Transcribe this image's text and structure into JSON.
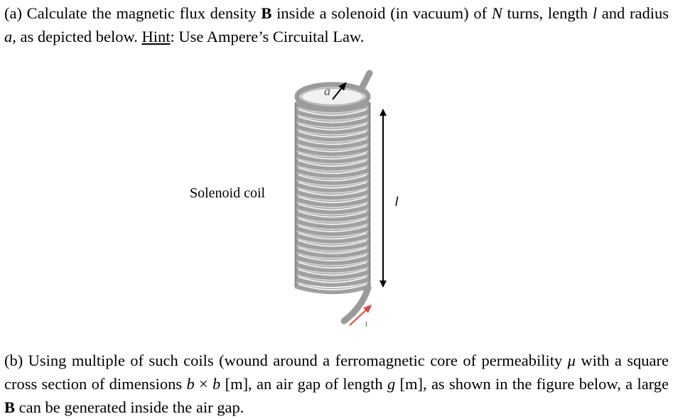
{
  "part_a": {
    "prefix": "(a) Calculate the magnetic flux density ",
    "B": "B",
    "mid1": " inside a solenoid (in vacuum) of ",
    "N": "N",
    "mid2": " turns, length ",
    "l": "l",
    "mid3": " and radius ",
    "a": "a",
    "mid4": ", as depicted below. ",
    "hint": "Hint",
    "suffix": ": Use Ampere’s Circuital Law."
  },
  "figure": {
    "coil_label": "Solenoid coil",
    "radius_label": "a",
    "length_label": "l",
    "current_label": "I",
    "coil_color": "#a9a9a9",
    "current_arrow_color": "#e0443a"
  },
  "part_b": {
    "prefix": "(b) Using multiple of such coils (wound around a ferromagnetic core of permeability ",
    "mu": "μ",
    "mid1": " with a square cross section of dimensions ",
    "b1": "b",
    "times": " × ",
    "b2": "b",
    "mid2": " [m], an air gap of length ",
    "g": "g",
    "mid3": " [m], as shown in the figure below, a large ",
    "B": "B",
    "suffix": " can be generated inside the air gap."
  }
}
